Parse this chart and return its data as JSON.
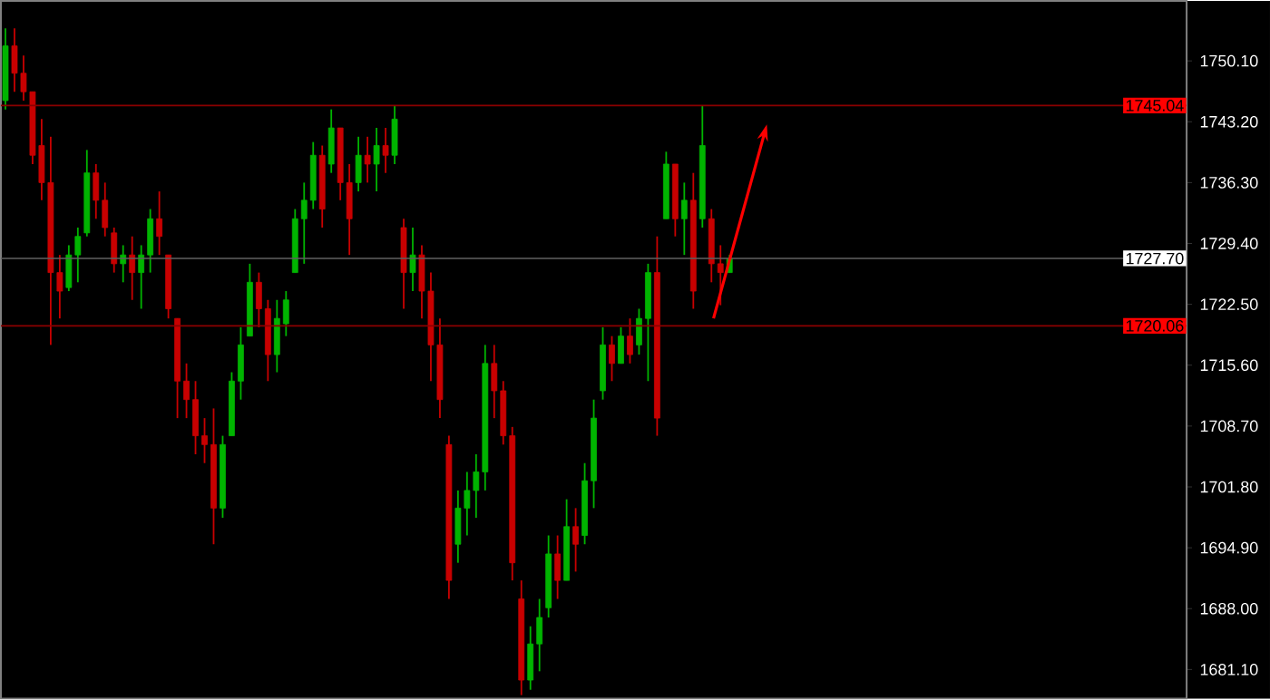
{
  "chart_data": {
    "type": "candlestick",
    "categories": [
      null,
      null,
      null,
      null,
      null,
      null,
      null,
      null,
      null,
      null,
      null,
      null,
      null,
      null,
      null,
      null,
      null,
      null,
      null,
      null,
      null,
      null,
      null,
      null,
      null,
      null,
      null,
      null,
      null,
      null,
      null,
      null,
      null,
      null,
      null,
      null,
      null,
      null,
      null,
      null,
      null,
      null,
      null,
      null,
      null,
      null,
      null,
      null,
      null,
      null,
      null,
      null,
      null,
      null,
      null,
      null,
      null,
      null,
      null,
      null,
      null,
      null,
      null,
      null,
      null,
      null,
      null,
      null,
      null,
      null,
      null,
      null,
      null,
      null,
      null,
      null,
      null,
      null,
      null,
      null,
      null,
      null,
      null,
      null,
      null,
      null,
      null,
      null,
      null,
      null,
      null,
      null,
      null,
      null,
      null,
      null,
      null,
      null,
      null,
      null,
      null,
      null,
      null,
      null,
      null,
      null,
      null,
      null,
      null,
      null,
      null,
      null,
      null,
      null,
      null,
      null,
      null,
      null,
      null,
      null,
      null,
      null,
      null,
      null,
      null,
      null,
      null,
      null,
      null,
      null,
      null
    ],
    "ohlc": [
      [
        1745.6,
        1753.8,
        1744.6,
        1751.8
      ],
      [
        1751.8,
        1753.8,
        1746.6,
        1748.7
      ],
      [
        1748.7,
        1750.7,
        1745.6,
        1746.6
      ],
      [
        1746.6,
        1746.6,
        1738.4,
        1739.4
      ],
      [
        1740.5,
        1743.5,
        1734.3,
        1736.3
      ],
      [
        1736.3,
        1741.5,
        1717.9,
        1726.1
      ],
      [
        1726.1,
        1728.1,
        1720.9,
        1724.0
      ],
      [
        1724.4,
        1729.2,
        1724.0,
        1728.1
      ],
      [
        1728.1,
        1731.2,
        1725.0,
        1730.2
      ],
      [
        1730.6,
        1740.0,
        1730.2,
        1737.4
      ],
      [
        1737.4,
        1738.4,
        1732.2,
        1734.3
      ],
      [
        1734.3,
        1736.3,
        1730.2,
        1731.2
      ],
      [
        1730.6,
        1731.2,
        1726.1,
        1727.1
      ],
      [
        1727.1,
        1729.2,
        1725.0,
        1728.1
      ],
      [
        1728.1,
        1730.2,
        1723.0,
        1726.1
      ],
      [
        1726.1,
        1729.2,
        1722.0,
        1728.1
      ],
      [
        1728.1,
        1733.3,
        1726.1,
        1732.2
      ],
      [
        1732.2,
        1735.3,
        1728.1,
        1730.2
      ],
      [
        1728.1,
        1728.1,
        1720.9,
        1722.0
      ],
      [
        1720.9,
        1720.9,
        1709.6,
        1713.8
      ],
      [
        1713.8,
        1715.8,
        1709.6,
        1711.7
      ],
      [
        1711.7,
        1713.8,
        1705.5,
        1707.6
      ],
      [
        1707.6,
        1709.6,
        1704.5,
        1706.6
      ],
      [
        1706.6,
        1710.7,
        1695.3,
        1699.4
      ],
      [
        1699.4,
        1707.6,
        1698.3,
        1706.6
      ],
      [
        1707.6,
        1714.8,
        1707.6,
        1713.8
      ],
      [
        1713.8,
        1719.9,
        1711.7,
        1717.9
      ],
      [
        1718.9,
        1727.1,
        1718.9,
        1725.0
      ],
      [
        1725.0,
        1726.1,
        1719.9,
        1722.0
      ],
      [
        1722.0,
        1723.0,
        1713.8,
        1716.8
      ],
      [
        1716.8,
        1723.0,
        1714.8,
        1720.9
      ],
      [
        1720.3,
        1724.0,
        1718.9,
        1723.0
      ],
      [
        1726.1,
        1733.3,
        1726.1,
        1732.2
      ],
      [
        1732.2,
        1736.3,
        1727.1,
        1734.3
      ],
      [
        1734.3,
        1740.9,
        1733.3,
        1739.4
      ],
      [
        1739.4,
        1740.5,
        1731.2,
        1733.3
      ],
      [
        1738.4,
        1744.6,
        1737.4,
        1742.5
      ],
      [
        1742.5,
        1742.5,
        1734.3,
        1736.3
      ],
      [
        1736.3,
        1738.4,
        1728.1,
        1732.2
      ],
      [
        1736.3,
        1741.5,
        1735.3,
        1739.4
      ],
      [
        1739.4,
        1741.5,
        1736.3,
        1738.4
      ],
      [
        1738.4,
        1742.5,
        1735.3,
        1740.5
      ],
      [
        1740.5,
        1742.5,
        1737.4,
        1739.4
      ],
      [
        1739.4,
        1745.0,
        1738.4,
        1743.5
      ],
      [
        1731.2,
        1732.2,
        1722.0,
        1726.1
      ],
      [
        1726.1,
        1731.2,
        1724.0,
        1728.1
      ],
      [
        1728.1,
        1729.2,
        1720.9,
        1724.0
      ],
      [
        1724.0,
        1726.1,
        1713.8,
        1717.9
      ],
      [
        1717.9,
        1720.9,
        1709.6,
        1711.7
      ],
      [
        1706.6,
        1707.6,
        1689.1,
        1691.2
      ],
      [
        1695.3,
        1701.4,
        1693.2,
        1699.4
      ],
      [
        1699.4,
        1703.5,
        1696.3,
        1701.4
      ],
      [
        1701.4,
        1705.5,
        1698.3,
        1703.5
      ],
      [
        1703.5,
        1717.9,
        1701.4,
        1715.8
      ],
      [
        1715.8,
        1717.9,
        1709.6,
        1712.7
      ],
      [
        1712.7,
        1713.8,
        1706.6,
        1707.6
      ],
      [
        1707.6,
        1708.6,
        1691.2,
        1693.2
      ],
      [
        1689.1,
        1691.2,
        1678.2,
        1679.9
      ],
      [
        1679.9,
        1686.0,
        1678.8,
        1684.0
      ],
      [
        1684.0,
        1689.1,
        1680.9,
        1687.0
      ],
      [
        1688.1,
        1696.3,
        1687.0,
        1694.2
      ],
      [
        1694.2,
        1696.3,
        1689.1,
        1691.2
      ],
      [
        1691.2,
        1700.4,
        1691.2,
        1697.3
      ],
      [
        1697.3,
        1699.4,
        1692.2,
        1695.3
      ],
      [
        1696.3,
        1704.5,
        1695.3,
        1702.5
      ],
      [
        1702.5,
        1711.7,
        1699.4,
        1709.6
      ],
      [
        1712.7,
        1719.9,
        1711.7,
        1717.9
      ],
      [
        1717.9,
        1718.9,
        1713.8,
        1715.8
      ],
      [
        1715.8,
        1719.9,
        1715.8,
        1718.9
      ],
      [
        1718.9,
        1720.9,
        1715.8,
        1716.8
      ],
      [
        1717.9,
        1722.0,
        1716.8,
        1720.9
      ],
      [
        1720.9,
        1727.1,
        1713.8,
        1726.1
      ],
      [
        1726.1,
        1730.2,
        1707.6,
        1709.6
      ],
      [
        1732.2,
        1739.8,
        1732.2,
        1738.4
      ],
      [
        1738.4,
        1738.4,
        1730.2,
        1732.2
      ],
      [
        1732.2,
        1736.3,
        1728.1,
        1734.3
      ],
      [
        1734.3,
        1737.4,
        1722.0,
        1724.0
      ],
      [
        1732.2,
        1745.0,
        1731.2,
        1740.5
      ],
      [
        1732.2,
        1733.3,
        1725.0,
        1727.1
      ],
      [
        1727.1,
        1729.2,
        1722.4,
        1726.1
      ],
      [
        1726.1,
        1728.1,
        1726.1,
        1727.7
      ],
      null,
      null,
      null,
      null,
      null,
      null,
      null,
      null,
      null,
      null,
      null,
      null,
      null,
      null,
      null,
      null,
      null,
      null,
      null,
      null,
      null,
      null,
      null,
      null,
      null,
      null,
      null,
      null,
      null,
      null,
      null,
      null,
      null,
      null,
      null,
      null,
      null,
      null,
      null,
      null,
      null,
      null,
      null,
      null,
      null,
      null,
      null,
      null,
      null,
      null
    ],
    "ylim": [
      1677.8,
      1756.9
    ],
    "yticks": [
      {
        "value": 1681.1,
        "label": "1681.10"
      },
      {
        "value": 1688.0,
        "label": "1688.00"
      },
      {
        "value": 1694.9,
        "label": "1694.90"
      },
      {
        "value": 1701.8,
        "label": "1701.80"
      },
      {
        "value": 1708.7,
        "label": "1708.70"
      },
      {
        "value": 1715.6,
        "label": "1715.60"
      },
      {
        "value": 1722.5,
        "label": "1722.50"
      },
      {
        "value": 1729.4,
        "label": "1729.40"
      },
      {
        "value": 1736.3,
        "label": "1736.30"
      },
      {
        "value": 1743.2,
        "label": "1743.20"
      },
      {
        "value": 1750.1,
        "label": "1750.10"
      }
    ],
    "ref_lines": [
      {
        "axis": "y",
        "value": 1745.04,
        "label": "1745.04",
        "color": "#8b0000"
      },
      {
        "axis": "y",
        "value": 1727.7,
        "label": "1727.70",
        "color": "#606060"
      },
      {
        "axis": "y",
        "value": 1720.06,
        "label": "1720.06",
        "color": "#8b0000"
      }
    ],
    "tick_labels": "y"
  }
}
